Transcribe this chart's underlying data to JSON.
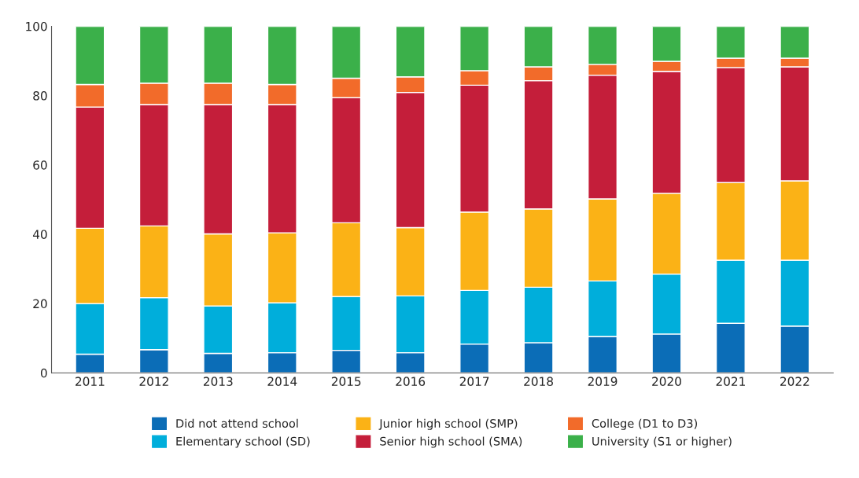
{
  "chart_data": {
    "type": "bar",
    "stacked": true,
    "categories": [
      "2011",
      "2012",
      "2013",
      "2014",
      "2015",
      "2016",
      "2017",
      "2018",
      "2019",
      "2020",
      "2021",
      "2022"
    ],
    "series": [
      {
        "name": "Did not attend school",
        "color": "#0b6db7",
        "values": [
          5.4,
          6.7,
          5.6,
          5.8,
          6.5,
          5.8,
          8.3,
          8.7,
          10.5,
          11.2,
          14.3,
          13.5
        ]
      },
      {
        "name": "Elementary school (SD)",
        "color": "#00aedb",
        "values": [
          14.6,
          15.0,
          13.7,
          14.4,
          15.5,
          16.4,
          15.5,
          16.0,
          16.0,
          17.3,
          18.2,
          19.0
        ]
      },
      {
        "name": "Junior high school (SMP)",
        "color": "#fbb216",
        "values": [
          21.7,
          20.7,
          20.8,
          20.2,
          21.3,
          19.7,
          22.6,
          22.6,
          23.7,
          23.3,
          22.4,
          22.9
        ]
      },
      {
        "name": "Senior high school (SMA)",
        "color": "#c41e3a",
        "values": [
          35.0,
          35.0,
          37.3,
          37.0,
          36.1,
          39.0,
          36.6,
          37.0,
          35.7,
          35.2,
          33.2,
          32.9
        ]
      },
      {
        "name": "College (D1 to D3)",
        "color": "#f26b2a",
        "values": [
          6.5,
          6.2,
          6.2,
          5.8,
          5.6,
          4.5,
          4.2,
          4.0,
          3.1,
          2.9,
          2.7,
          2.5
        ]
      },
      {
        "name": "University (S1 or higher)",
        "color": "#3bb04a",
        "values": [
          16.8,
          16.4,
          16.4,
          16.8,
          15.0,
          14.6,
          12.8,
          11.7,
          11.0,
          10.1,
          9.2,
          9.2
        ]
      }
    ],
    "ylim": [
      0,
      100
    ],
    "yticks": [
      0,
      20,
      40,
      60,
      80,
      100
    ],
    "grid": false,
    "legend": "bottom"
  }
}
